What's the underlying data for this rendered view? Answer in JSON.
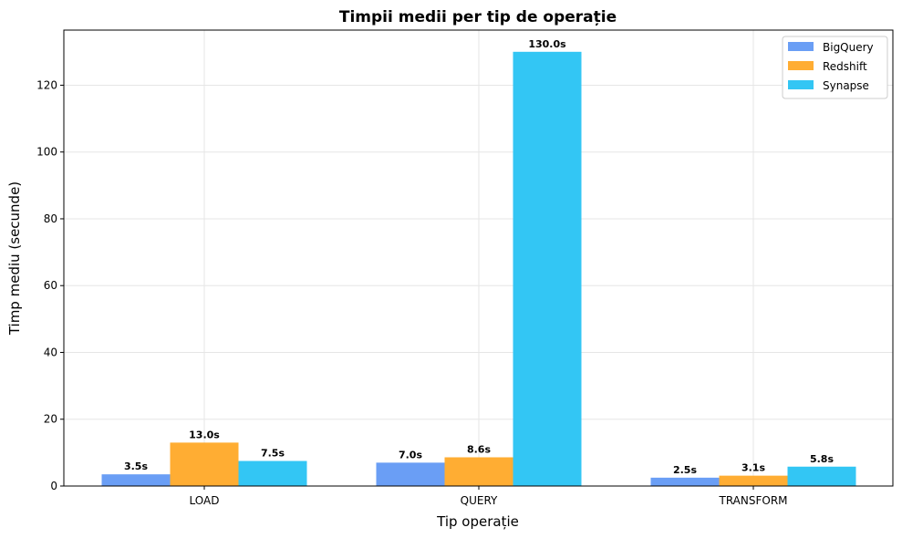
{
  "chart_data": {
    "type": "bar",
    "title": "Timpii medii per tip de operație",
    "xlabel": "Tip operație",
    "ylabel": "Timp mediu (secunde)",
    "categories": [
      "LOAD",
      "QUERY",
      "TRANSFORM"
    ],
    "series": [
      {
        "name": "BigQuery",
        "color": "#6a9ef5",
        "values": [
          3.5,
          7.0,
          2.5
        ],
        "labels": [
          "3.5s",
          "7.0s",
          "2.5s"
        ]
      },
      {
        "name": "Redshift",
        "color": "#ffad33",
        "values": [
          13.0,
          8.6,
          3.1
        ],
        "labels": [
          "13.0s",
          "8.6s",
          "3.1s"
        ]
      },
      {
        "name": "Synapse",
        "color": "#33c6f4",
        "values": [
          7.5,
          130.0,
          5.8
        ],
        "labels": [
          "7.5s",
          "130.0s",
          "5.8s"
        ]
      }
    ],
    "ylim": [
      0,
      136.5
    ],
    "yticks": [
      0,
      20,
      40,
      60,
      80,
      100,
      120
    ],
    "grid": true,
    "legend_position": "top-right"
  }
}
